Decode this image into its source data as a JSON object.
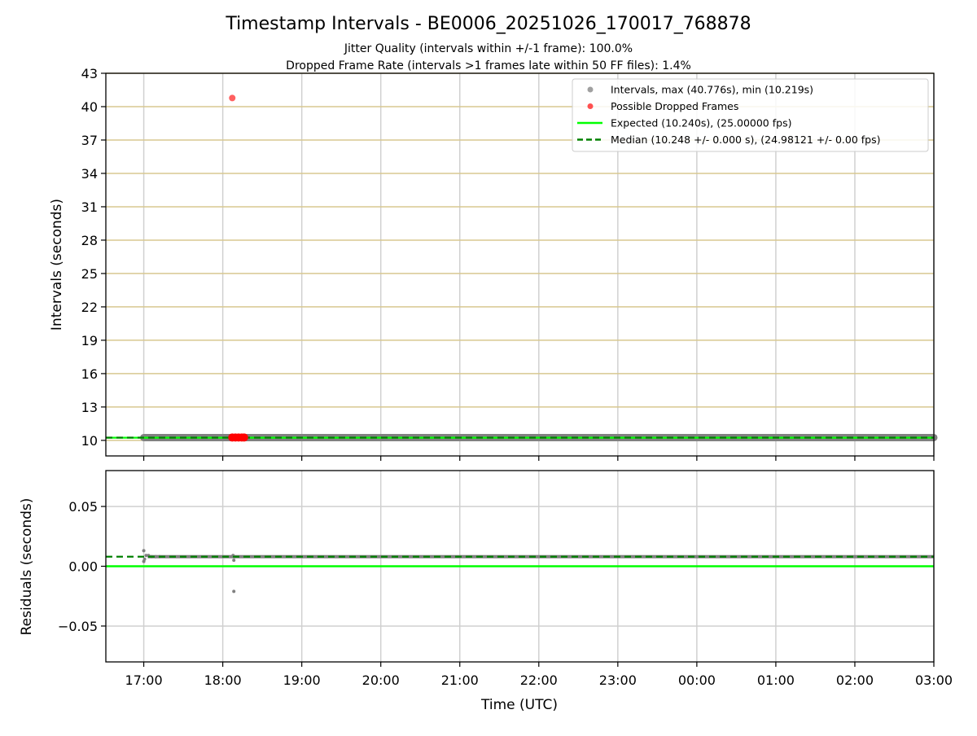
{
  "chart_data": [
    {
      "type": "scatter",
      "title": "Timestamp Intervals - BE0006_20251026_170017_768878",
      "subtitle_lines": [
        "Jitter Quality (intervals within +/-1 frame): 100.0%",
        "Dropped Frame Rate (intervals >1 frames late within 50 FF files): 1.4%"
      ],
      "ylabel": "Intervals (seconds)",
      "ylim": [
        8.6,
        43
      ],
      "yticks": [
        10,
        13,
        16,
        19,
        22,
        25,
        28,
        31,
        34,
        37,
        40,
        43
      ],
      "xlim_hours": [
        16.52,
        27.0
      ],
      "grid": true,
      "legend_position": "top-right",
      "legend": [
        {
          "label": "Intervals, max (40.776s), min (10.219s)",
          "kind": "marker",
          "color": "#a0a0a0"
        },
        {
          "label": "Possible Dropped Frames",
          "kind": "marker",
          "color": "#ff5050"
        },
        {
          "label": "Expected (10.240s), (25.00000 fps)",
          "kind": "line",
          "color": "#00ff00"
        },
        {
          "label": "Median (10.248 +/- 0.000 s), (24.98121 +/- 0.00 fps)",
          "kind": "dashed",
          "color": "#008000"
        }
      ],
      "series": [
        {
          "name": "Intervals",
          "band": {
            "x_start": 17.0,
            "x_end": 27.0,
            "y": 10.248
          },
          "color": "#808080"
        },
        {
          "name": "Possible Dropped Frames",
          "points": [
            [
              18.12,
              40.776
            ],
            [
              18.12,
              10.26
            ],
            [
              18.16,
              10.26
            ],
            [
              18.2,
              10.26
            ],
            [
              18.24,
              10.26
            ],
            [
              18.27,
              10.26
            ]
          ],
          "color": "#ff0000"
        },
        {
          "name": "Expected",
          "y": 10.24,
          "color": "#00ff00"
        },
        {
          "name": "Median",
          "y": 10.248,
          "color": "#008000"
        }
      ]
    },
    {
      "type": "scatter",
      "xlabel": "Time (UTC)",
      "ylabel": "Residuals (seconds)",
      "ylim": [
        -0.08,
        0.08
      ],
      "yticks": [
        -0.05,
        0.0,
        0.05
      ],
      "ytick_labels": [
        "−0.05",
        "0.00",
        "0.05"
      ],
      "xticks_hours": [
        17,
        18,
        19,
        20,
        21,
        22,
        23,
        24,
        25,
        26,
        27
      ],
      "xtick_labels": [
        "17:00",
        "18:00",
        "19:00",
        "20:00",
        "21:00",
        "22:00",
        "23:00",
        "00:00",
        "01:00",
        "02:00",
        "03:00"
      ],
      "series": [
        {
          "name": "Residuals",
          "band": {
            "x_start": 17.05,
            "x_end": 27.0,
            "y": 0.008
          },
          "points": [
            [
              17.0,
              0.013
            ],
            [
              17.0,
              0.004
            ],
            [
              17.01,
              0.006
            ],
            [
              17.03,
              0.009
            ],
            [
              17.06,
              0.009
            ],
            [
              17.1,
              0.008
            ],
            [
              17.15,
              0.008
            ],
            [
              17.2,
              0.008
            ],
            [
              18.13,
              0.009
            ],
            [
              18.14,
              0.005
            ],
            [
              18.15,
              0.008
            ],
            [
              18.14,
              -0.021
            ]
          ],
          "color": "#808080"
        },
        {
          "name": "Expected",
          "y": 0.0,
          "color": "#00ff00"
        },
        {
          "name": "Median",
          "y": 0.008,
          "color": "#008000"
        }
      ]
    }
  ]
}
